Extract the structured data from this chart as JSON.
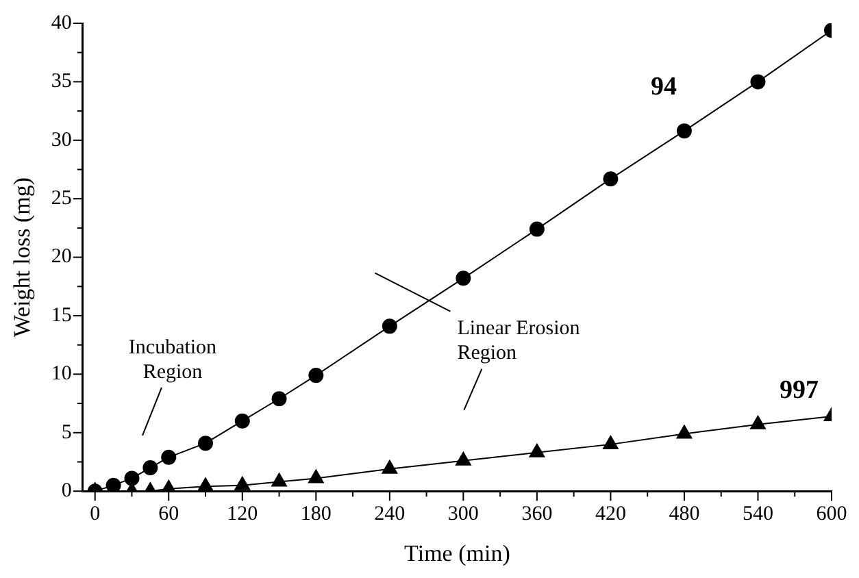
{
  "chart_data": {
    "type": "line",
    "xlabel": "Time (min)",
    "ylabel": "Weight loss (mg)",
    "x": [
      0,
      15,
      30,
      45,
      60,
      90,
      120,
      150,
      180,
      240,
      300,
      360,
      420,
      480,
      540,
      600
    ],
    "series": [
      {
        "name": "94",
        "color": "#000000",
        "marker": "circle",
        "values": [
          0,
          0.5,
          1.1,
          2,
          2.9,
          4.1,
          6,
          7.9,
          9.9,
          14.1,
          18.2,
          22.4,
          26.7,
          30.8,
          35,
          39.4
        ]
      },
      {
        "name": "997",
        "color": "#000000",
        "marker": "triangle",
        "values": [
          0,
          0,
          0,
          0,
          0.2,
          0.4,
          0.5,
          0.8,
          1.1,
          1.9,
          2.6,
          3.3,
          4,
          4.9,
          5.7,
          6.4
        ]
      }
    ],
    "xlim": [
      -10,
      600
    ],
    "ylim": [
      0,
      40
    ],
    "xticks": [
      0,
      {
        "value": 30,
        "label": null
      },
      60,
      {
        "value": 90,
        "label": null
      },
      120,
      {
        "value": 150,
        "label": null
      },
      180,
      {
        "value": 210,
        "label": null
      },
      240,
      {
        "value": 270,
        "label": null
      },
      300,
      {
        "value": 330,
        "label": null
      },
      360,
      {
        "value": 390,
        "label": null
      },
      420,
      {
        "value": 450,
        "label": null
      },
      480,
      {
        "value": 510,
        "label": null
      },
      540,
      {
        "value": 570,
        "label": null
      },
      600
    ],
    "yticks": [
      0,
      {
        "value": 2.5,
        "label": null
      },
      5,
      {
        "value": 7.5,
        "label": null
      },
      10,
      {
        "value": 12.5,
        "label": null
      },
      15,
      {
        "value": 17.5,
        "label": null
      },
      20,
      {
        "value": 22.5,
        "label": null
      },
      25,
      {
        "value": 27.5,
        "label": null
      },
      30,
      {
        "value": 32.5,
        "label": null
      },
      35,
      {
        "value": 37.5,
        "label": null
      },
      40
    ],
    "annotations": [
      "Incubation Region",
      "Linear Erosion Region"
    ],
    "grid": false,
    "legend": false,
    "line_style": "solid"
  }
}
